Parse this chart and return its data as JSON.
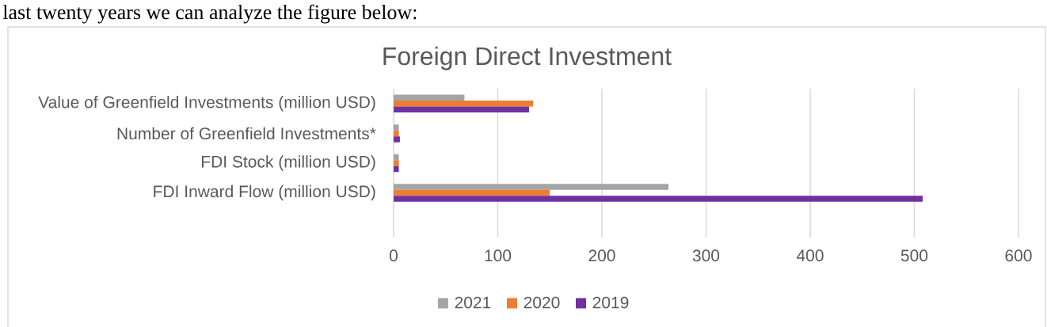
{
  "chart_data": {
    "type": "bar",
    "orientation": "horizontal",
    "title": "Foreign Direct Investment",
    "annotations": [
      "last twenty years we can analyze the figure below:"
    ],
    "categories": [
      "Value of Greenfield Investments (million USD)",
      "Number of Greenfield Investments*",
      "FDI Stock (million USD)",
      "FDI Inward Flow (million USD)",
      null
    ],
    "series": [
      {
        "name": "2021",
        "color": "#a5a5a5",
        "values": [
          68,
          5,
          5,
          264,
          null
        ]
      },
      {
        "name": "2020",
        "color": "#ed7d31",
        "values": [
          134,
          5,
          5,
          150,
          null
        ]
      },
      {
        "name": "2019",
        "color": "#7030a0",
        "values": [
          130,
          6,
          5,
          508,
          null
        ]
      }
    ],
    "xlim": [
      0,
      600
    ],
    "xticks": [
      0,
      100,
      200,
      300,
      400,
      500,
      600
    ],
    "grid": "x",
    "legend": "bottom"
  }
}
